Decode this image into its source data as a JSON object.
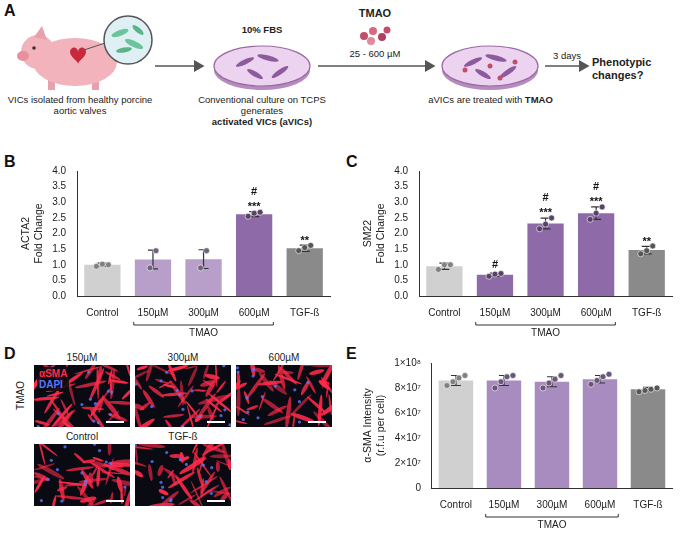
{
  "diagram": {
    "panel": "A",
    "source": "VICs isolated from healthy porcine aortic valves",
    "culture": {
      "medium": "10% FBS",
      "text": "Conventional culture on TCPS generates",
      "bold": "activated VICs (aVICs)"
    },
    "treatment": {
      "agent": "TMAO",
      "dose": "25 - 600 µM"
    },
    "treated": {
      "text": "aVICs are treated with",
      "bold": "TMAO"
    },
    "duration": "3 days",
    "outcome": "Phenotypic changes?"
  },
  "images": {
    "panel": "D",
    "row_label": "TMAO",
    "channels": [
      {
        "name": "αSMA",
        "color": "#ff2a4a"
      },
      {
        "name": "DAPI",
        "color": "#5a78ff"
      }
    ],
    "rows": [
      [
        "150µM",
        "300µM",
        "600µM"
      ],
      [
        "Control",
        "TGF-ß"
      ]
    ]
  },
  "chart_data": [
    {
      "panel": "B",
      "type": "bar",
      "ylabel": [
        "ACTA2",
        "Fold Change"
      ],
      "categories": [
        "Control",
        "150µM",
        "300µM",
        "600µM",
        "TGF-ß"
      ],
      "values": [
        1.0,
        1.17,
        1.18,
        2.62,
        1.53
      ],
      "error": [
        0.05,
        0.3,
        0.3,
        0.08,
        0.1
      ],
      "points": [
        [
          0.95,
          1.02,
          1.0
        ],
        [
          0.9,
          1.45
        ],
        [
          0.9,
          1.45
        ],
        [
          2.55,
          2.65,
          2.68
        ],
        [
          1.45,
          1.55,
          1.62
        ]
      ],
      "annotations": [
        [],
        [],
        [],
        [
          "#",
          "***"
        ],
        [
          "**"
        ]
      ],
      "colors": [
        "#d0d0d0",
        "#b79fc9",
        "#b79fc9",
        "#8e6aa8",
        "#8a8a8a"
      ],
      "group": {
        "label": "TMAO",
        "categories": [
          "150µM",
          "300µM",
          "600µM"
        ]
      },
      "ylim": [
        0,
        4
      ],
      "yticks": [
        {
          "value": 0,
          "label": "0.0"
        },
        0.5,
        {
          "value": 1,
          "label": "1.0"
        },
        1.5,
        {
          "value": 2,
          "label": "2.0"
        },
        2.5,
        {
          "value": 3,
          "label": "3.0"
        },
        3.5,
        {
          "value": 4,
          "label": "4.0"
        }
      ],
      "grid": false
    },
    {
      "panel": "C",
      "type": "bar",
      "ylabel": [
        "SM22",
        "Fold Change"
      ],
      "categories": [
        "Control",
        "150µM",
        "300µM",
        "600µM",
        "TGF-ß"
      ],
      "values": [
        0.95,
        0.68,
        2.32,
        2.65,
        1.47
      ],
      "error": [
        0.1,
        0.05,
        0.17,
        0.2,
        0.12
      ],
      "points": [
        [
          0.85,
          1.0,
          1.0
        ],
        [
          0.63,
          0.7,
          0.72
        ],
        [
          2.15,
          2.3,
          2.5
        ],
        [
          2.45,
          2.65,
          2.85
        ],
        [
          1.35,
          1.45,
          1.6
        ]
      ],
      "annotations": [
        [],
        [
          "#"
        ],
        [
          "#",
          "***"
        ],
        [
          "#",
          "***"
        ],
        [
          "**"
        ]
      ],
      "colors": [
        "#d0d0d0",
        "#8e6aa8",
        "#8e6aa8",
        "#8e6aa8",
        "#8a8a8a"
      ],
      "group": {
        "label": "TMAO",
        "categories": [
          "150µM",
          "300µM",
          "600µM"
        ]
      },
      "ylim": [
        0,
        4
      ],
      "yticks": [
        {
          "value": 0,
          "label": "0.0"
        },
        0.5,
        {
          "value": 1,
          "label": "1.0"
        },
        1.5,
        {
          "value": 2,
          "label": "2.0"
        },
        2.5,
        {
          "value": 3,
          "label": "3.0"
        },
        3.5,
        {
          "value": 4,
          "label": "4.0"
        }
      ],
      "grid": false
    },
    {
      "panel": "E",
      "type": "bar",
      "ylabel": [
        "α-SMA Intensity",
        "(r.f.u per cell)"
      ],
      "categories": [
        "Control",
        "150µM",
        "300µM",
        "600µM",
        "TGF-ß"
      ],
      "values": [
        86000000,
        86000000,
        85000000,
        87000000,
        79000000
      ],
      "error": [
        4000000,
        4000000,
        4000000,
        3000000,
        1500000
      ],
      "points": [
        [
          82000000,
          85000000,
          88000000,
          90000000
        ],
        [
          80000000,
          85000000,
          89000000,
          90000000
        ],
        [
          80000000,
          84000000,
          87000000,
          90000000
        ],
        [
          83000000,
          86000000,
          89000000,
          91000000
        ],
        [
          77000000,
          78000000,
          79000000,
          80000000
        ]
      ],
      "colors": [
        "#d0d0d0",
        "#a88cc0",
        "#a88cc0",
        "#a88cc0",
        "#8a8a8a"
      ],
      "group": {
        "label": "TMAO",
        "categories": [
          "150µM",
          "300µM",
          "600µM"
        ]
      },
      "ylim": [
        0,
        100000000
      ],
      "yticks": [
        0,
        {
          "value": 20000000,
          "label": "2×10⁷"
        },
        {
          "value": 40000000,
          "label": "4×10⁷"
        },
        {
          "value": 60000000,
          "label": "6×10⁷"
        },
        {
          "value": 80000000,
          "label": "8×10⁷"
        },
        {
          "value": 100000000,
          "label": "1×10⁸"
        }
      ],
      "grid": false
    }
  ]
}
